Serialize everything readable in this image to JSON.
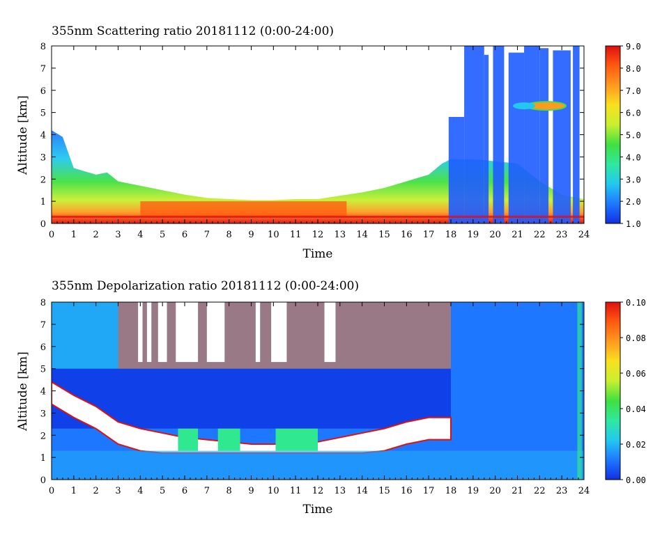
{
  "chart_data": [
    {
      "type": "heatmap",
      "title": "355nm Scattering ratio  20181112 (0:00-24:00)",
      "xlabel": "Time",
      "ylabel": "Altitude [km]",
      "xlim": [
        0,
        24
      ],
      "ylim": [
        0,
        8
      ],
      "x_ticks": [
        "0",
        "1",
        "2",
        "3",
        "4",
        "5",
        "6",
        "7",
        "8",
        "9",
        "10",
        "11",
        "12",
        "13",
        "14",
        "15",
        "16",
        "17",
        "18",
        "19",
        "20",
        "21",
        "22",
        "23",
        "24"
      ],
      "y_ticks": [
        "0",
        "1",
        "2",
        "3",
        "4",
        "5",
        "6",
        "7",
        "8"
      ],
      "colorbar": {
        "range": [
          1.0,
          9.0
        ],
        "ticks": [
          "1.0",
          "2.0",
          "3.0",
          "4.0",
          "5.0",
          "6.0",
          "7.0",
          "8.0",
          "9.0"
        ],
        "colors": [
          "#1030e0",
          "#1e78ff",
          "#22c8f0",
          "#30e8a0",
          "#40e040",
          "#c8f030",
          "#f8e020",
          "#ff9a20",
          "#ff5a10",
          "#e01010"
        ]
      },
      "boundary_layer_top_km": [
        [
          0,
          4.2
        ],
        [
          0.5,
          3.9
        ],
        [
          1,
          2.5
        ],
        [
          2,
          2.2
        ],
        [
          2.5,
          2.3
        ],
        [
          3,
          1.9
        ],
        [
          4,
          1.7
        ],
        [
          5,
          1.5
        ],
        [
          6,
          1.3
        ],
        [
          7,
          1.15
        ],
        [
          8,
          1.1
        ],
        [
          9,
          1.05
        ],
        [
          10,
          1.05
        ],
        [
          11,
          1.1
        ],
        [
          12,
          1.1
        ],
        [
          13,
          1.25
        ],
        [
          14,
          1.4
        ],
        [
          15,
          1.6
        ],
        [
          16,
          1.9
        ],
        [
          17,
          2.2
        ],
        [
          17.6,
          2.7
        ],
        [
          18,
          2.9
        ],
        [
          19,
          2.9
        ],
        [
          20,
          2.8
        ],
        [
          21,
          2.7
        ],
        [
          22,
          1.9
        ],
        [
          23,
          1.3
        ],
        [
          24,
          1.1
        ]
      ]
    },
    {
      "type": "heatmap",
      "title": "355nm Depolarization ratio  20181112 (0:00-24:00)",
      "xlabel": "Time",
      "ylabel": "Altitude [km]",
      "xlim": [
        0,
        24
      ],
      "ylim": [
        0,
        8
      ],
      "x_ticks": [
        "0",
        "1",
        "2",
        "3",
        "4",
        "5",
        "6",
        "7",
        "8",
        "9",
        "10",
        "11",
        "12",
        "13",
        "14",
        "15",
        "16",
        "17",
        "18",
        "19",
        "20",
        "21",
        "22",
        "23",
        "24"
      ],
      "y_ticks": [
        "0",
        "1",
        "2",
        "3",
        "4",
        "5",
        "6",
        "7",
        "8"
      ],
      "colorbar": {
        "range": [
          0.0,
          0.1
        ],
        "ticks": [
          "0.00",
          "0.02",
          "0.04",
          "0.06",
          "0.08",
          "0.10"
        ],
        "colors": [
          "#1030e0",
          "#1e78ff",
          "#22c8f0",
          "#30e8a0",
          "#40e040",
          "#c8f030",
          "#f8e020",
          "#ff9a20",
          "#ff5a10",
          "#e01010"
        ]
      },
      "aerosol_layer_top_km": [
        [
          0,
          4.4
        ],
        [
          1,
          3.8
        ],
        [
          2,
          3.3
        ],
        [
          3,
          2.6
        ],
        [
          4,
          2.3
        ],
        [
          5,
          2.1
        ],
        [
          6,
          1.9
        ],
        [
          7,
          1.8
        ],
        [
          8,
          1.7
        ],
        [
          9,
          1.6
        ],
        [
          10,
          1.6
        ],
        [
          11,
          1.6
        ],
        [
          12,
          1.7
        ],
        [
          13,
          1.9
        ],
        [
          14,
          2.1
        ],
        [
          15,
          2.3
        ],
        [
          16,
          2.6
        ],
        [
          17,
          2.8
        ],
        [
          18,
          2.8
        ]
      ]
    }
  ]
}
